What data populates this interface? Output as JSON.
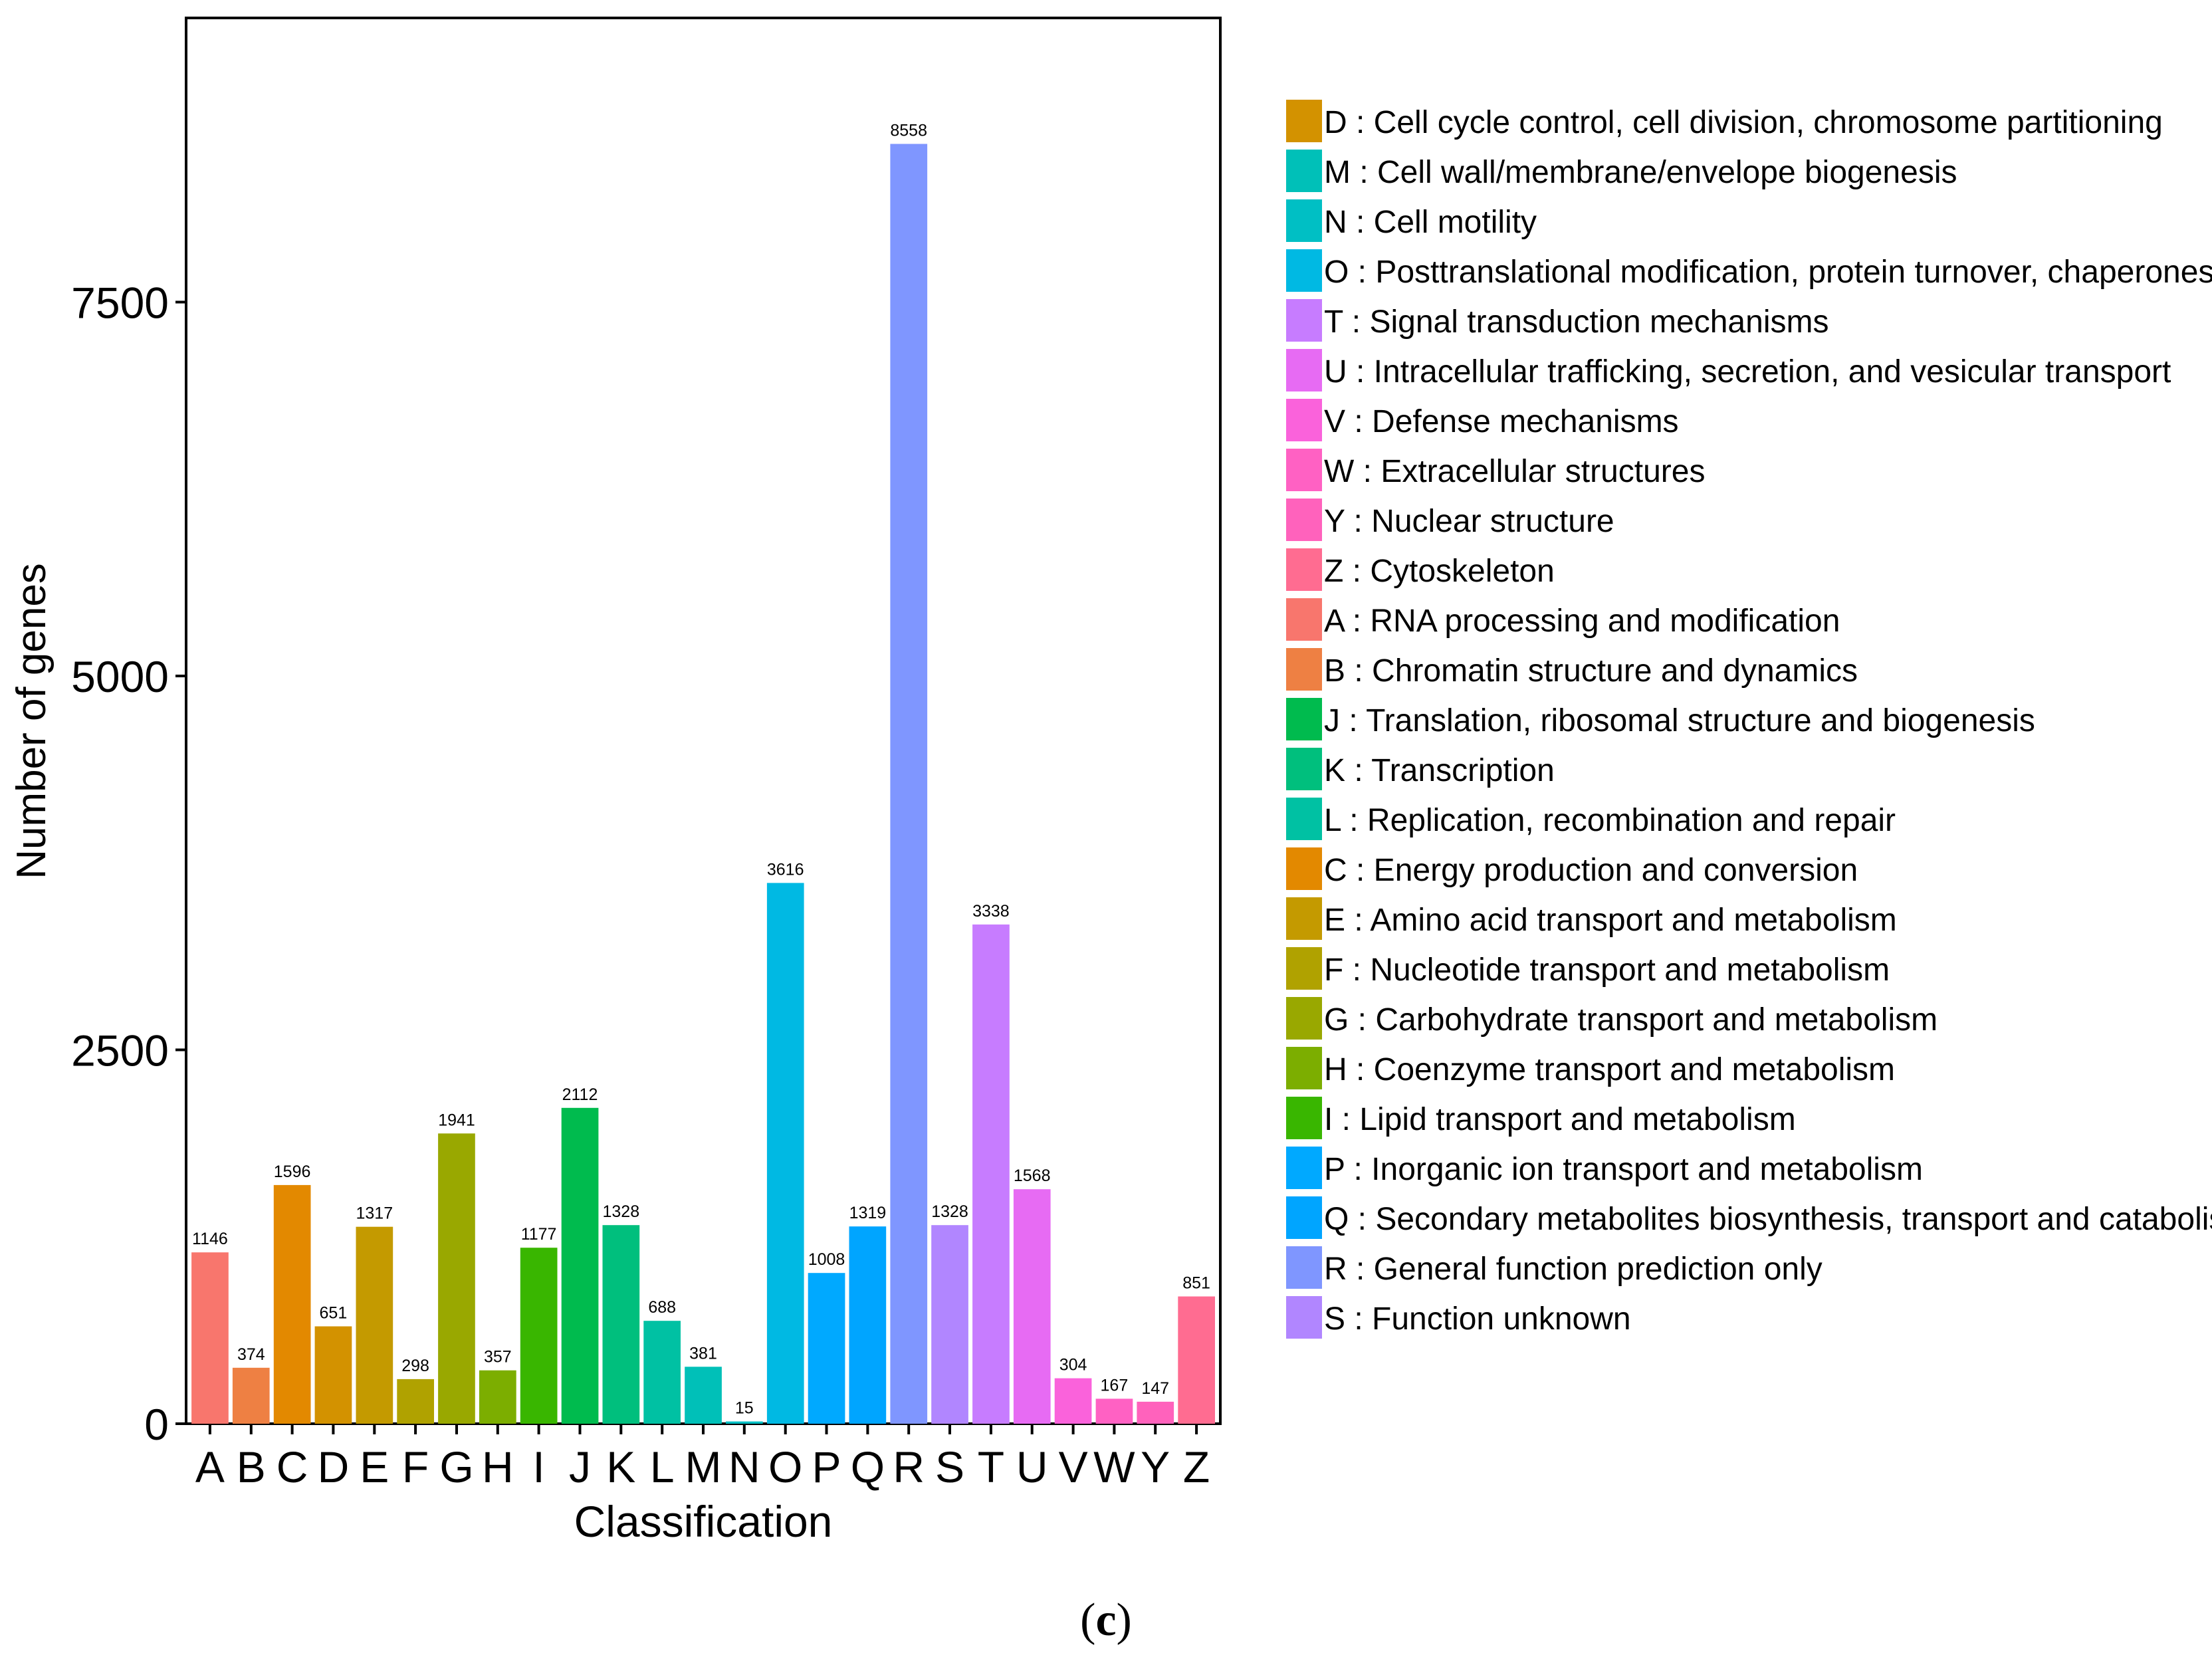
{
  "chart_data": {
    "type": "bar",
    "title": "",
    "xlabel": "Classification",
    "ylabel": "Number of genes",
    "ylim": [
      0,
      9400
    ],
    "yticks": [
      0,
      2500,
      5000,
      7500
    ],
    "ytick_labels": [
      "0",
      "2500",
      "5000",
      "7500"
    ],
    "grid": false,
    "legend_position": "right",
    "categories": [
      "A",
      "B",
      "C",
      "D",
      "E",
      "F",
      "G",
      "H",
      "I",
      "J",
      "K",
      "L",
      "M",
      "N",
      "O",
      "P",
      "Q",
      "R",
      "S",
      "T",
      "U",
      "V",
      "W",
      "Y",
      "Z"
    ],
    "values": [
      1146,
      374,
      1596,
      651,
      1317,
      298,
      1941,
      357,
      1177,
      2112,
      1328,
      688,
      381,
      15,
      3616,
      1008,
      1319,
      8558,
      1328,
      3338,
      1568,
      304,
      167,
      147,
      851
    ],
    "value_labels": [
      "1146",
      "374",
      "1596",
      "651",
      "1317",
      "298",
      "1941",
      "357",
      "1177",
      "2112",
      "1328",
      "688",
      "381",
      "15",
      "3616",
      "1008",
      "1319",
      "8558",
      "1328",
      "3338",
      "1568",
      "304",
      "167",
      "147",
      "851"
    ],
    "colors": {
      "A": "#F8766D",
      "B": "#EE8043",
      "C": "#E38900",
      "D": "#D39200",
      "E": "#C49A00",
      "F": "#B0A200",
      "G": "#99A800",
      "H": "#7CAE00",
      "I": "#39B600",
      "J": "#00BB4E",
      "K": "#00BF7D",
      "L": "#00C1A3",
      "M": "#00C0B8",
      "N": "#00BFC4",
      "O": "#00B9E3",
      "P": "#00A9FF",
      "Q": "#00A5FF",
      "R": "#7F96FF",
      "S": "#B186FF",
      "T": "#C77CFF",
      "U": "#E76BF3",
      "V": "#FA62DB",
      "W": "#FF61C3",
      "Y": "#FF62BC",
      "Z": "#FF6C91"
    },
    "legend": [
      {
        "code": "D",
        "label": "D : Cell cycle control, cell division, chromosome partitioning",
        "color": "#D39200"
      },
      {
        "code": "M",
        "label": "M : Cell wall/membrane/envelope biogenesis",
        "color": "#00C0B8"
      },
      {
        "code": "N",
        "label": "N : Cell motility",
        "color": "#00BFC4"
      },
      {
        "code": "O",
        "label": "O : Posttranslational modification, protein turnover, chaperones",
        "color": "#00B9E3"
      },
      {
        "code": "T",
        "label": "T : Signal transduction mechanisms",
        "color": "#C77CFF"
      },
      {
        "code": "U",
        "label": "U : Intracellular trafficking, secretion, and vesicular transport",
        "color": "#E76BF3"
      },
      {
        "code": "V",
        "label": "V : Defense mechanisms",
        "color": "#FA62DB"
      },
      {
        "code": "W",
        "label": "W : Extracellular structures",
        "color": "#FF61C3"
      },
      {
        "code": "Y",
        "label": "Y : Nuclear structure",
        "color": "#FF62BC"
      },
      {
        "code": "Z",
        "label": "Z : Cytoskeleton",
        "color": "#FF6C91"
      },
      {
        "code": "A",
        "label": "A : RNA processing and modification",
        "color": "#F8766D"
      },
      {
        "code": "B",
        "label": "B : Chromatin structure and dynamics",
        "color": "#EE8043"
      },
      {
        "code": "J",
        "label": "J : Translation, ribosomal structure and biogenesis",
        "color": "#00BB4E"
      },
      {
        "code": "K",
        "label": "K : Transcription",
        "color": "#00BF7D"
      },
      {
        "code": "L",
        "label": "L : Replication, recombination and repair",
        "color": "#00C1A3"
      },
      {
        "code": "C",
        "label": "C : Energy production and conversion",
        "color": "#E38900"
      },
      {
        "code": "E",
        "label": "E : Amino acid transport and metabolism",
        "color": "#C49A00"
      },
      {
        "code": "F",
        "label": "F : Nucleotide transport and metabolism",
        "color": "#B0A200"
      },
      {
        "code": "G",
        "label": "G : Carbohydrate transport and metabolism",
        "color": "#99A800"
      },
      {
        "code": "H",
        "label": "H : Coenzyme transport and metabolism",
        "color": "#7CAE00"
      },
      {
        "code": "I",
        "label": "I : Lipid transport and metabolism",
        "color": "#39B600"
      },
      {
        "code": "P",
        "label": "P : Inorganic ion transport and metabolism",
        "color": "#00A9FF"
      },
      {
        "code": "Q",
        "label": "Q : Secondary metabolites biosynthesis, transport and catabolism",
        "color": "#00A5FF"
      },
      {
        "code": "R",
        "label": "R : General function prediction only",
        "color": "#7F96FF"
      },
      {
        "code": "S",
        "label": "S : Function unknown",
        "color": "#B186FF"
      }
    ]
  },
  "figure": {
    "panel_label_open": "(",
    "panel_label_letter": "c",
    "panel_label_close": ")"
  }
}
